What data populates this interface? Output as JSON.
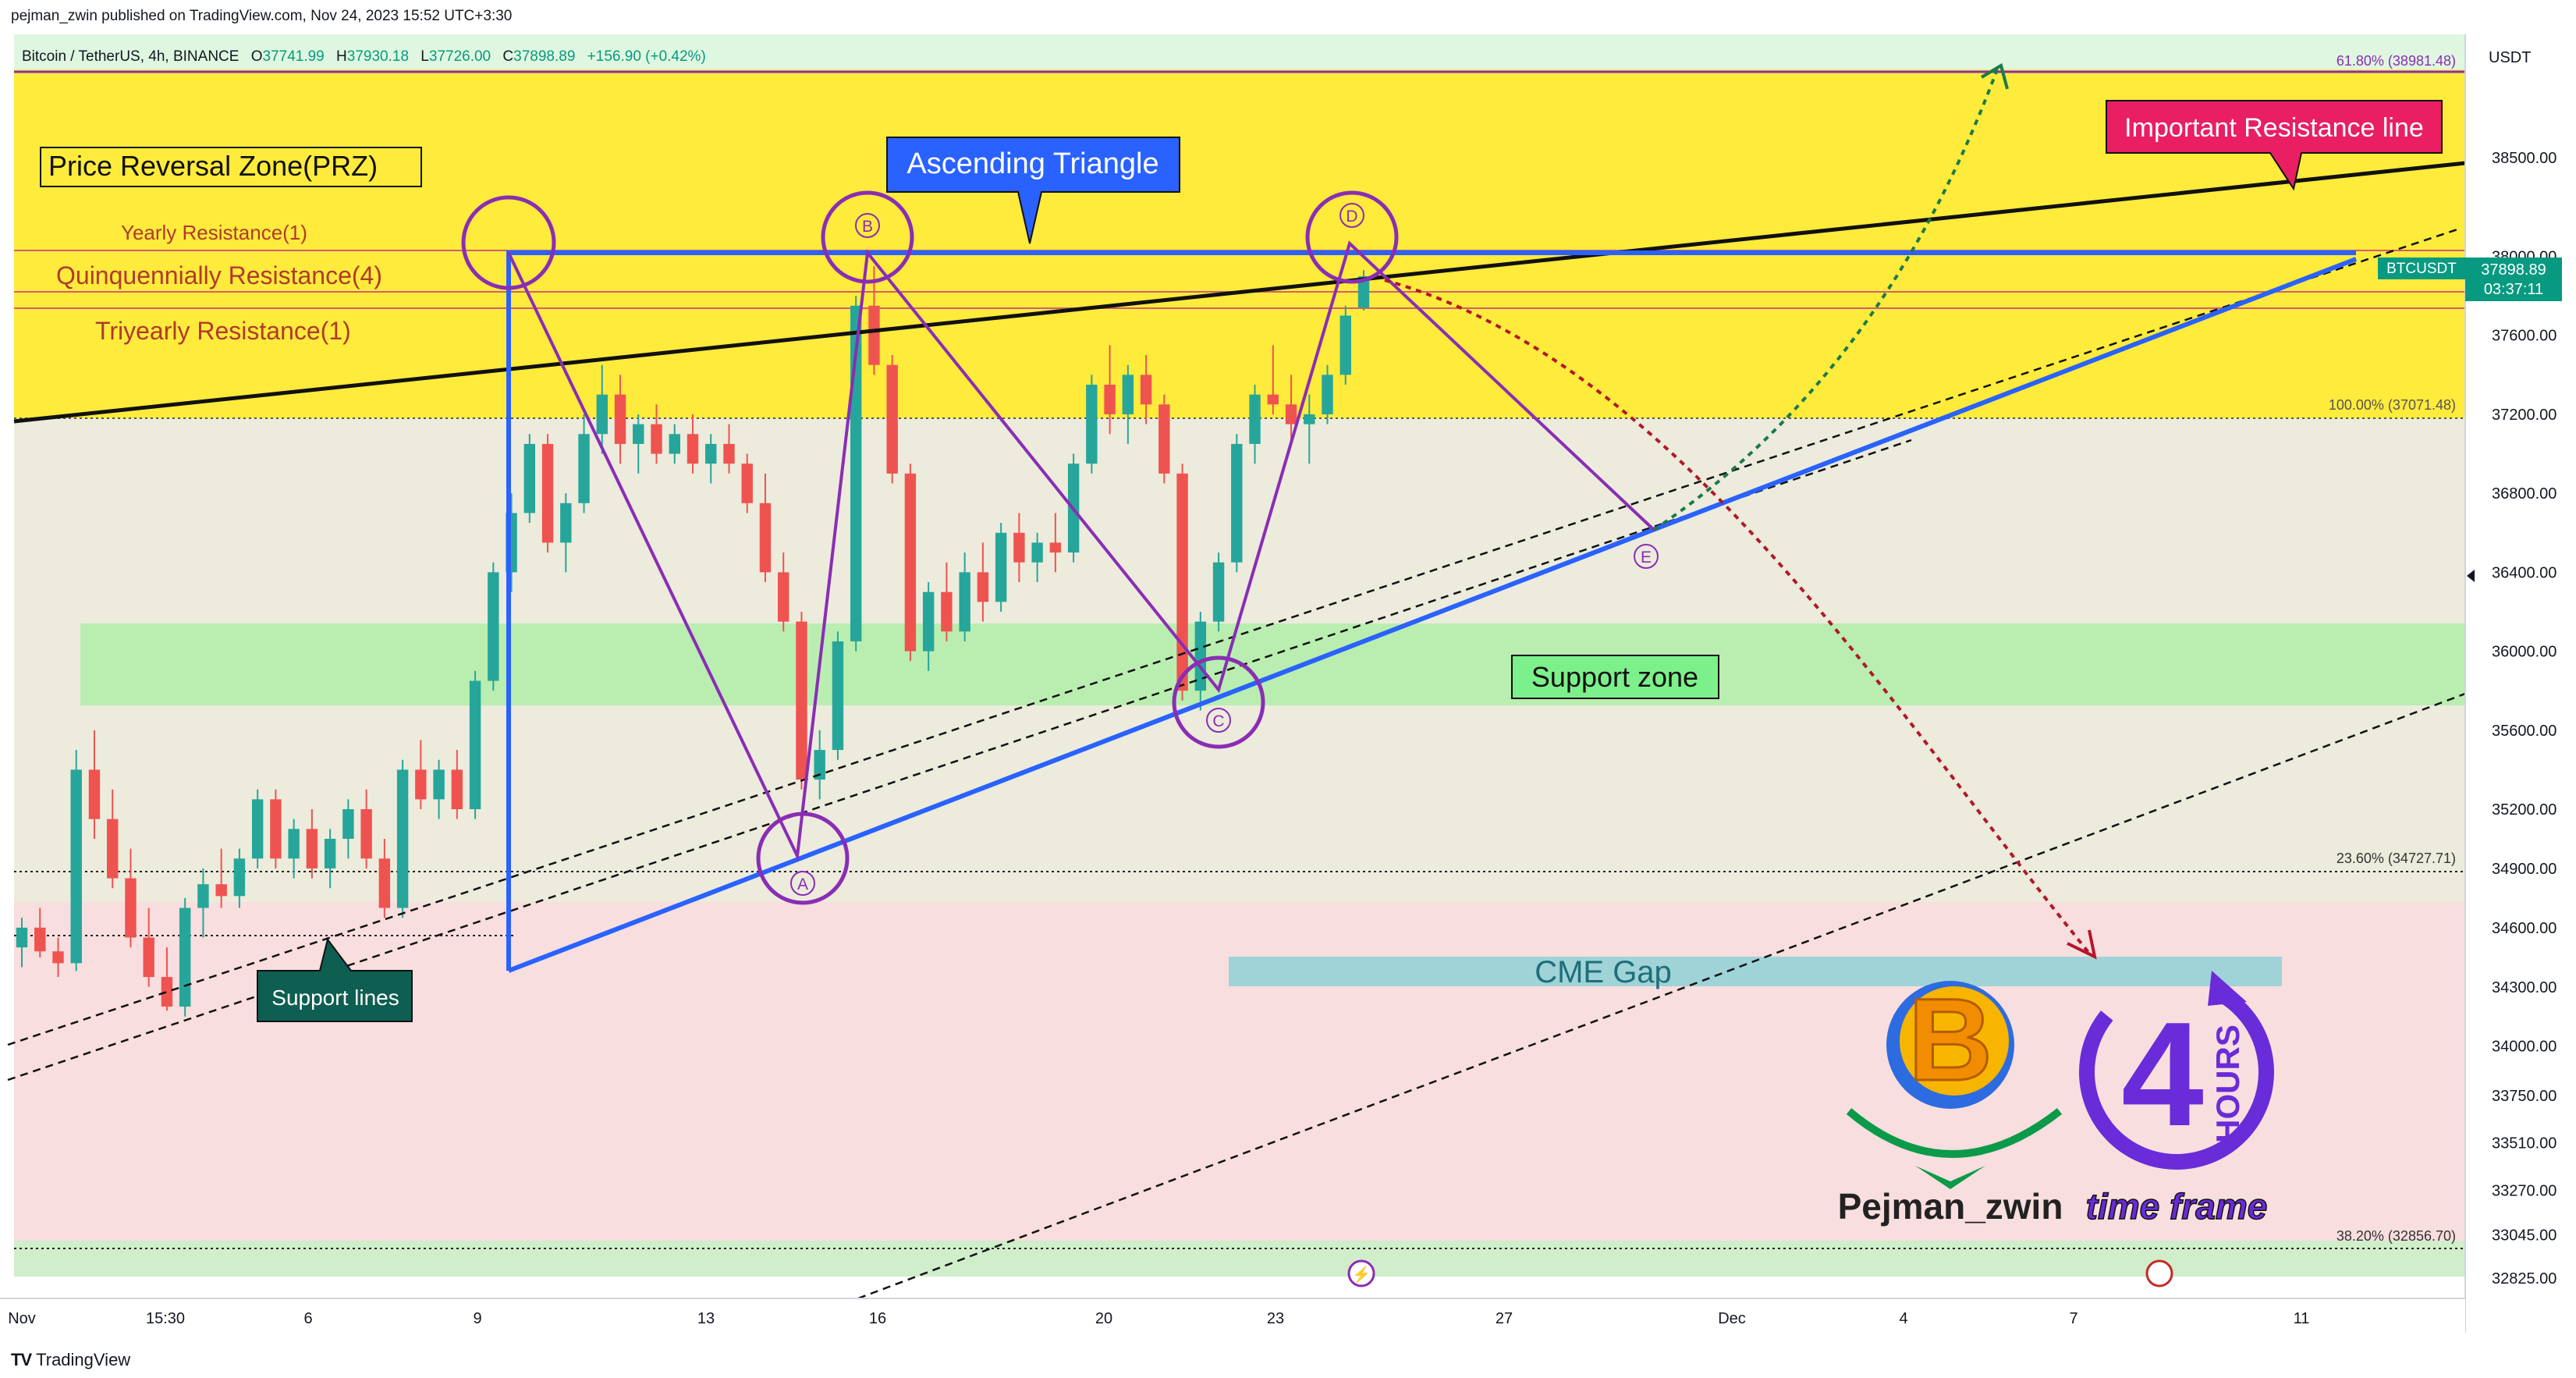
{
  "header": {
    "publisher": "pejman_zwin published on TradingView.com, Nov 24, 2023 15:52 UTC+3:30"
  },
  "footer": {
    "logo_text": "TradingView"
  },
  "colors": {
    "up": "#26a69a",
    "down": "#ef5350",
    "prz": "#ffe933",
    "support": "#b9eeb0",
    "purple": "#8a2db5",
    "blue": "#2962ff",
    "cme": "#9fd3d8"
  },
  "chart_data": {
    "type": "candlestick",
    "symbol_line": {
      "name": "Bitcoin / TetherUS, 4h, BINANCE",
      "o_label": "O",
      "o": "37741.99",
      "h_label": "H",
      "h": "37930.18",
      "l_label": "L",
      "l": "37726.00",
      "c_label": "C",
      "c": "37898.89",
      "change": "+156.90 (+0.42%)"
    },
    "currency": "USDT",
    "price_badge": {
      "symbol": "BTCUSDT",
      "price": "37898.89",
      "countdown": "03:37:11"
    },
    "y_ticks": [
      "38500.00",
      "38000.00",
      "37600.00",
      "37200.00",
      "36800.00",
      "36400.00",
      "36000.00",
      "35600.00",
      "35200.00",
      "34900.00",
      "34600.00",
      "34300.00",
      "34000.00",
      "33750.00",
      "33510.00",
      "33270.00",
      "33045.00",
      "32825.00"
    ],
    "x_ticks": [
      "Nov",
      "15:30",
      "6",
      "9",
      "13",
      "16",
      "20",
      "23",
      "27",
      "Dec",
      "4",
      "7",
      "11"
    ],
    "fib_levels": [
      {
        "label": "61.80% (38981.48)",
        "price": 38981.48
      },
      {
        "label": "100.00% (37071.48)",
        "price": 37071.48
      },
      {
        "label": "23.60% (34727.71)",
        "price": 34727.71
      },
      {
        "label": "38.20% (32856.70)",
        "price": 32856.7
      }
    ],
    "zones": {
      "prz_label": "Price Reversal Zone(PRZ)",
      "support_zone_label": "Support zone",
      "cme_gap_label": "CME Gap"
    },
    "resistances": [
      "Yearly Resistance(1)",
      "Quinquennially Resistance(4)",
      "Triyearly Resistance(1)"
    ],
    "annotations": {
      "ascending_triangle": "Ascending Triangle",
      "important_resistance": "Important Resistance line",
      "support_lines": "Support lines"
    },
    "points": [
      "A",
      "B",
      "C",
      "D",
      "E"
    ],
    "branding": {
      "author": "Pejman_zwin",
      "timeframe_num": "4",
      "timeframe_unit": "HOURS",
      "timeframe_text": "time frame",
      "logo_letter": "B"
    },
    "candles": [
      [
        34500,
        34650,
        34400,
        34600
      ],
      [
        34600,
        34700,
        34450,
        34480
      ],
      [
        34480,
        34550,
        34350,
        34420
      ],
      [
        34420,
        35500,
        34380,
        35400
      ],
      [
        35400,
        35600,
        35050,
        35150
      ],
      [
        35150,
        35300,
        34800,
        34850
      ],
      [
        34850,
        35000,
        34500,
        34550
      ],
      [
        34550,
        34700,
        34300,
        34350
      ],
      [
        34350,
        34500,
        34180,
        34200
      ],
      [
        34200,
        34750,
        34150,
        34700
      ],
      [
        34700,
        34900,
        34550,
        34820
      ],
      [
        34820,
        35000,
        34700,
        34760
      ],
      [
        34760,
        35000,
        34700,
        34950
      ],
      [
        34950,
        35300,
        34900,
        35250
      ],
      [
        35250,
        35300,
        34900,
        34950
      ],
      [
        34950,
        35150,
        34850,
        35100
      ],
      [
        35100,
        35200,
        34850,
        34900
      ],
      [
        34900,
        35100,
        34800,
        35050
      ],
      [
        35050,
        35250,
        34950,
        35200
      ],
      [
        35200,
        35300,
        34900,
        34950
      ],
      [
        34950,
        35050,
        34650,
        34700
      ],
      [
        34700,
        35450,
        34650,
        35400
      ],
      [
        35400,
        35550,
        35200,
        35250
      ],
      [
        35250,
        35450,
        35150,
        35400
      ],
      [
        35400,
        35500,
        35150,
        35200
      ],
      [
        35200,
        35900,
        35150,
        35850
      ],
      [
        35850,
        36450,
        35800,
        36400
      ],
      [
        36400,
        36800,
        36300,
        36700
      ],
      [
        36700,
        37100,
        36650,
        37050
      ],
      [
        37050,
        37100,
        36500,
        36550
      ],
      [
        36550,
        36800,
        36400,
        36750
      ],
      [
        36750,
        37200,
        36700,
        37100
      ],
      [
        37100,
        37450,
        37000,
        37300
      ],
      [
        37300,
        37400,
        36950,
        37050
      ],
      [
        37050,
        37200,
        36900,
        37150
      ],
      [
        37150,
        37250,
        36950,
        37000
      ],
      [
        37000,
        37150,
        36950,
        37100
      ],
      [
        37100,
        37200,
        36900,
        36950
      ],
      [
        36950,
        37100,
        36850,
        37050
      ],
      [
        37050,
        37150,
        36900,
        36950
      ],
      [
        36950,
        37000,
        36700,
        36750
      ],
      [
        36750,
        36900,
        36350,
        36400
      ],
      [
        36400,
        36500,
        36100,
        36150
      ],
      [
        36150,
        36200,
        35300,
        35350
      ],
      [
        35350,
        35600,
        35250,
        35500
      ],
      [
        35500,
        36100,
        35450,
        36050
      ],
      [
        36050,
        37800,
        36000,
        37750
      ],
      [
        37750,
        37950,
        37400,
        37450
      ],
      [
        37450,
        37500,
        36850,
        36900
      ],
      [
        36900,
        36950,
        35950,
        36000
      ],
      [
        36000,
        36350,
        35900,
        36300
      ],
      [
        36300,
        36450,
        36050,
        36100
      ],
      [
        36100,
        36500,
        36050,
        36400
      ],
      [
        36400,
        36550,
        36150,
        36250
      ],
      [
        36250,
        36650,
        36200,
        36600
      ],
      [
        36600,
        36700,
        36350,
        36450
      ],
      [
        36450,
        36600,
        36350,
        36550
      ],
      [
        36550,
        36700,
        36400,
        36500
      ],
      [
        36500,
        37000,
        36450,
        36950
      ],
      [
        36950,
        37400,
        36900,
        37350
      ],
      [
        37350,
        37550,
        37100,
        37200
      ],
      [
        37200,
        37450,
        37050,
        37400
      ],
      [
        37400,
        37500,
        37150,
        37250
      ],
      [
        37250,
        37300,
        36850,
        36900
      ],
      [
        36900,
        36950,
        35750,
        35800
      ],
      [
        35800,
        36200,
        35700,
        36150
      ],
      [
        36150,
        36500,
        36100,
        36450
      ],
      [
        36450,
        37100,
        36400,
        37050
      ],
      [
        37050,
        37350,
        36950,
        37300
      ],
      [
        37300,
        37550,
        37200,
        37250
      ],
      [
        37250,
        37400,
        37050,
        37150
      ],
      [
        37150,
        37300,
        36950,
        37200
      ],
      [
        37200,
        37450,
        37150,
        37400
      ],
      [
        37400,
        37750,
        37350,
        37700
      ],
      [
        37740,
        37930,
        37726,
        37899
      ]
    ]
  }
}
